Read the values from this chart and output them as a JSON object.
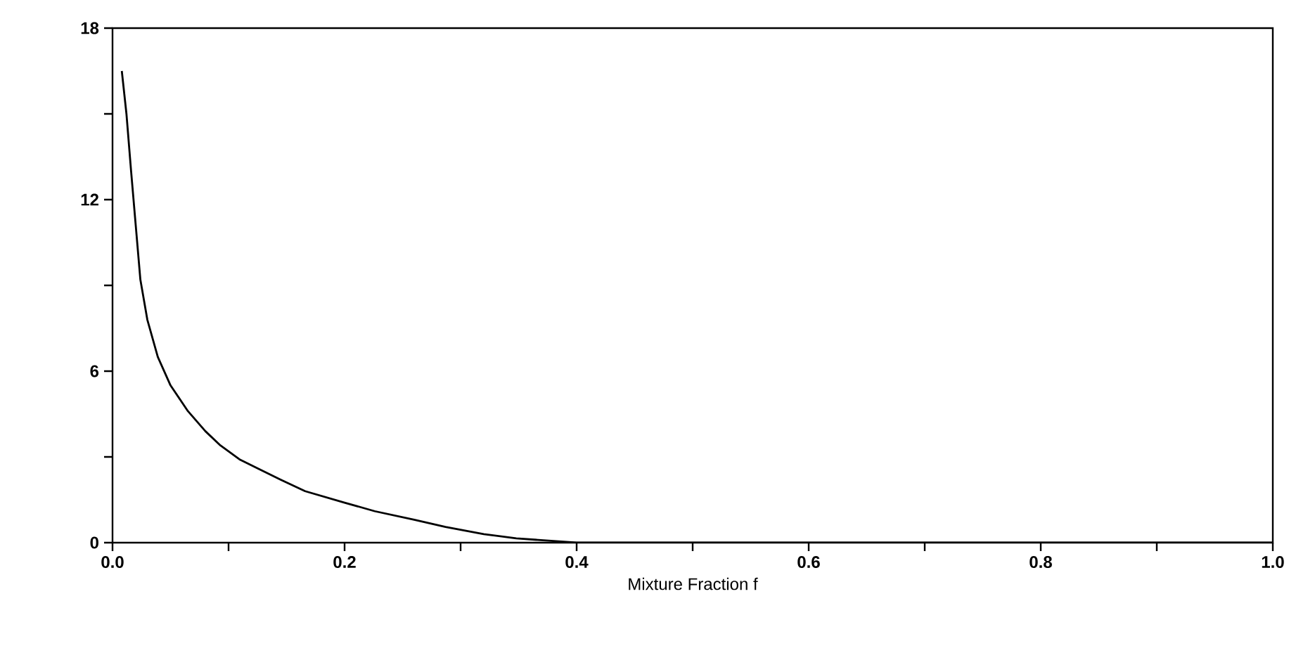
{
  "chart_data": {
    "type": "line",
    "xlabel": "Mixture Fraction f",
    "x": [
      0.008,
      0.012,
      0.016,
      0.02,
      0.024,
      0.03,
      0.039,
      0.05,
      0.065,
      0.08,
      0.093,
      0.11,
      0.125,
      0.145,
      0.166,
      0.2,
      0.226,
      0.26,
      0.287,
      0.32,
      0.348,
      0.4,
      0.5,
      0.6,
      0.8,
      1.0
    ],
    "series": [
      {
        "color": "#000000",
        "values": [
          16.5,
          15.0,
          13.0,
          11.1,
          9.2,
          7.8,
          6.5,
          5.5,
          4.6,
          3.9,
          3.4,
          2.9,
          2.6,
          2.2,
          1.8,
          1.4,
          1.1,
          0.8,
          0.55,
          0.3,
          0.15,
          0,
          0,
          0,
          0,
          0
        ]
      }
    ],
    "xlim": [
      0,
      1.0
    ],
    "ylim": [
      0,
      18
    ],
    "xticks": [
      {
        "value": 0,
        "label": "0.0"
      },
      {
        "value": 0.1,
        "label": null
      },
      0.2,
      {
        "value": 0.3,
        "label": null
      },
      0.4,
      {
        "value": 0.5,
        "label": null
      },
      0.6,
      {
        "value": 0.7,
        "label": null
      },
      0.8,
      {
        "value": 0.9,
        "label": null
      },
      {
        "value": 1.0,
        "label": "1.0"
      }
    ],
    "yticks": [
      0,
      {
        "value": 3,
        "label": null
      },
      6,
      {
        "value": 9,
        "label": null
      },
      12,
      {
        "value": 15,
        "label": null
      },
      18
    ],
    "marker": "none",
    "line_style": "solid"
  }
}
